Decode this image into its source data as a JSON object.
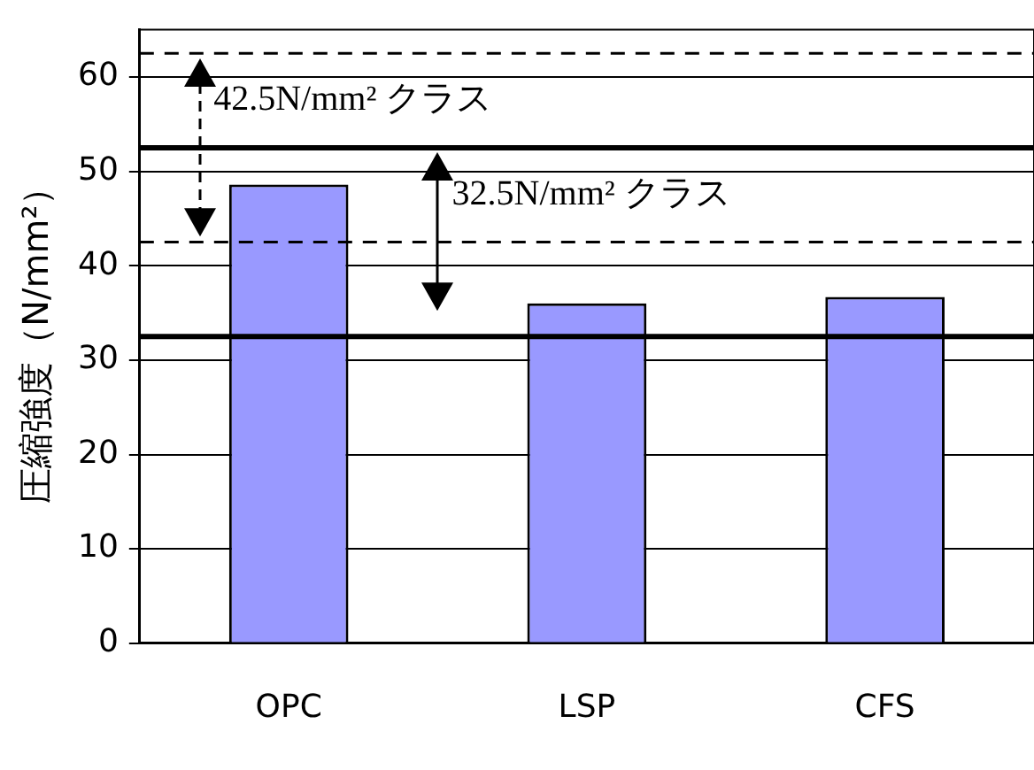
{
  "chart_data": {
    "type": "bar",
    "ylabel": "圧縮強度（N/mm²）",
    "categories": [
      "OPC",
      "LSP",
      "CFS"
    ],
    "values": [
      48.6,
      36.0,
      36.7
    ],
    "color": "#9999ff",
    "ylim": [
      0,
      65
    ],
    "yticks": [
      0,
      10,
      20,
      30,
      40,
      50,
      60
    ],
    "grid": "y",
    "legend": false,
    "ref_lines": [
      {
        "axis": "y",
        "value": 62.5,
        "color": "#000000",
        "line_style": "dashed"
      },
      {
        "axis": "y",
        "value": 42.5,
        "color": "#000000",
        "line_style": "dashed"
      },
      {
        "axis": "y",
        "value": 52.5,
        "color": "#000000",
        "line_style": "solid"
      },
      {
        "axis": "y",
        "value": 32.5,
        "color": "#000000",
        "line_style": "solid"
      }
    ],
    "annotations": [
      "42.5N/mm² クラス",
      "32.5N/mm² クラス"
    ]
  }
}
